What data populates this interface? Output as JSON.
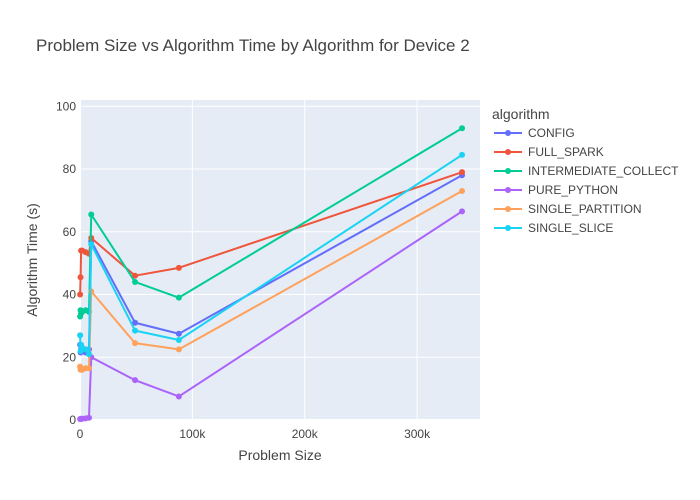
{
  "chart_data": {
    "type": "line",
    "title": "Problem Size vs Algorithm Time by Algorithm for Device 2",
    "xlabel": "Problem Size",
    "ylabel": "Algorithm Time (s)",
    "xlim": [
      0,
      356000
    ],
    "ylim": [
      0,
      102
    ],
    "x_ticks": [
      0,
      100000,
      200000,
      300000
    ],
    "x_tick_labels": [
      "0",
      "100k",
      "200k",
      "300k"
    ],
    "y_ticks": [
      0,
      20,
      40,
      60,
      80,
      100
    ],
    "y_tick_labels": [
      "0",
      "20",
      "40",
      "60",
      "80",
      "100"
    ],
    "grid": true,
    "legend_title": "algorithm",
    "legend_position": "right",
    "series": [
      {
        "name": "CONFIG",
        "color": "#636efa",
        "x": [
          100,
          500,
          1000,
          2000,
          5000,
          8000,
          10000,
          49000,
          88000,
          340000
        ],
        "y": [
          24,
          21.5,
          22.5,
          22,
          21.5,
          22.5,
          57,
          31,
          27.5,
          78
        ]
      },
      {
        "name": "FULL_SPARK",
        "color": "#ef553b",
        "x": [
          100,
          500,
          1000,
          2000,
          5000,
          8000,
          10000,
          49000,
          88000,
          340000
        ],
        "y": [
          40,
          45.5,
          54,
          54,
          53.5,
          53,
          58,
          46,
          48.5,
          79
        ]
      },
      {
        "name": "INTERMEDIATE_COLLECT",
        "color": "#00cc96",
        "x": [
          100,
          500,
          1000,
          2000,
          5000,
          8000,
          10000,
          49000,
          88000,
          340000
        ],
        "y": [
          33,
          35,
          34,
          34.5,
          35,
          34.5,
          65.5,
          44,
          39,
          93
        ]
      },
      {
        "name": "PURE_PYTHON",
        "color": "#ab63fa",
        "x": [
          100,
          500,
          1000,
          2000,
          5000,
          8000,
          10000,
          49000,
          88000,
          340000
        ],
        "y": [
          0.3,
          0.3,
          0.4,
          0.4,
          0.5,
          0.7,
          20,
          12.7,
          7.5,
          66.5
        ]
      },
      {
        "name": "SINGLE_PARTITION",
        "color": "#ffa15a",
        "x": [
          100,
          500,
          1000,
          2000,
          5000,
          8000,
          10000,
          49000,
          88000,
          340000
        ],
        "y": [
          17,
          16,
          16.5,
          16,
          16.5,
          16.5,
          41,
          24.5,
          22.5,
          73
        ]
      },
      {
        "name": "SINGLE_SLICE",
        "color": "#19d3f3",
        "x": [
          100,
          500,
          1000,
          2000,
          5000,
          8000,
          10000,
          49000,
          88000,
          340000
        ],
        "y": [
          27,
          22,
          24,
          23,
          22.5,
          21,
          56,
          28.5,
          25.5,
          84.5
        ]
      }
    ]
  }
}
